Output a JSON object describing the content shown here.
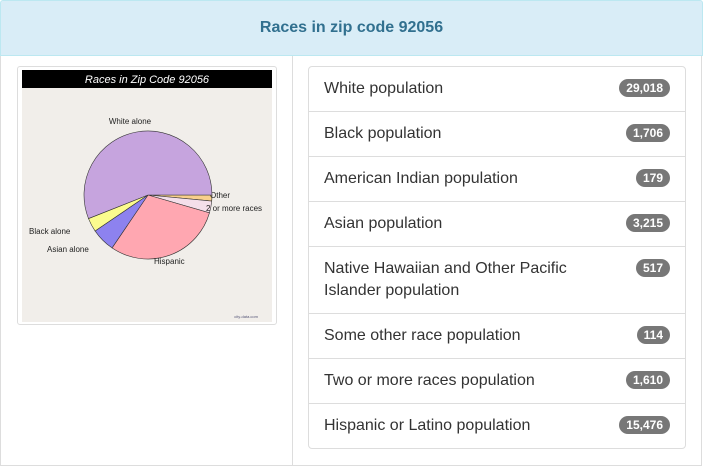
{
  "header": {
    "title": "Races in zip code 92056"
  },
  "chart_data": {
    "type": "pie",
    "title": "Races in Zip Code 92056",
    "source": "city-data.com",
    "categories": [
      "Other",
      "2 or more races",
      "Hispanic",
      "Asian alone",
      "Black alone",
      "White alone"
    ],
    "values": [
      1.5,
      3,
      30,
      6,
      3.5,
      56
    ],
    "colors": [
      "#f8cf8c",
      "#f4dfea",
      "#ffa7b1",
      "#8d82ef",
      "#fbfb8e",
      "#c6a4de"
    ]
  },
  "list": {
    "items": [
      {
        "label": "White population",
        "count": "29,018"
      },
      {
        "label": "Black population",
        "count": "1,706"
      },
      {
        "label": "American Indian population",
        "count": "179"
      },
      {
        "label": "Asian population",
        "count": "3,215"
      },
      {
        "label": "Native Hawaiian and Other Pacific Islander population",
        "count": "517"
      },
      {
        "label": "Some other race population",
        "count": "114"
      },
      {
        "label": "Two or more races population",
        "count": "1,610"
      },
      {
        "label": "Hispanic or Latino population",
        "count": "15,476"
      }
    ]
  }
}
